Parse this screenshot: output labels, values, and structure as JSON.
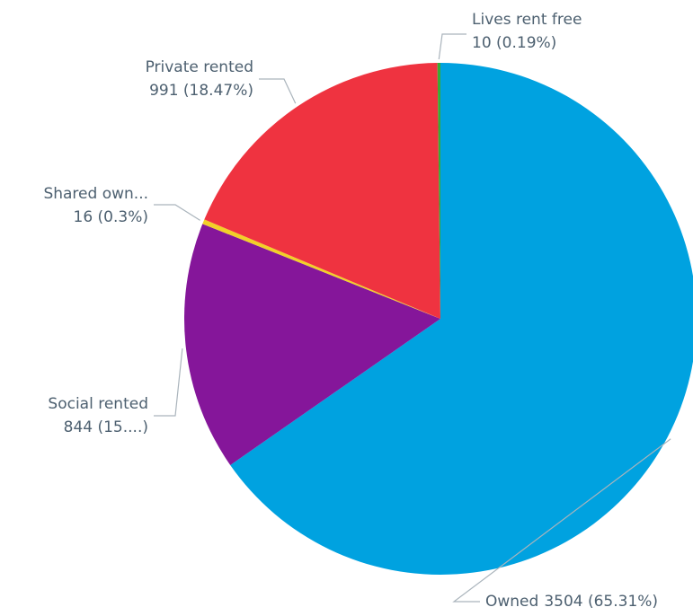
{
  "chart_data": {
    "type": "pie",
    "categories": [
      "Owned",
      "Social rented",
      "Shared own...",
      "Private rented",
      "Lives rent free"
    ],
    "values": [
      3504,
      844,
      16,
      991,
      10
    ],
    "value_labels": [
      "3504 (65.31%)",
      "844 (15....)",
      "16 (0.3%)",
      "991 (18.47%)",
      "10 (0.19%)"
    ],
    "colors": [
      "#00a2e0",
      "#85169a",
      "#f2d028",
      "#ef3340",
      "#3aaa35"
    ]
  }
}
